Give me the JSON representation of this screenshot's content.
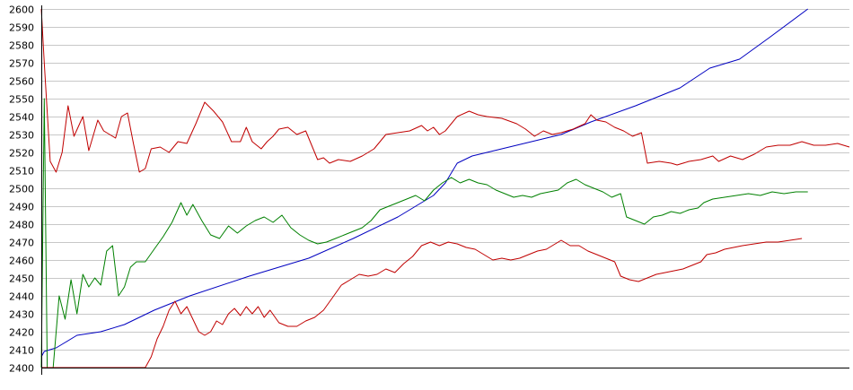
{
  "chart_data": {
    "type": "line",
    "title": "",
    "xlabel": "",
    "ylabel": "",
    "ylim": [
      2400,
      2600
    ],
    "yticks": [
      2400,
      2410,
      2420,
      2430,
      2440,
      2450,
      2460,
      2470,
      2480,
      2490,
      2500,
      2510,
      2520,
      2530,
      2540,
      2550,
      2560,
      2570,
      2580,
      2590,
      2600
    ],
    "grid": "horizontal",
    "legend": "none",
    "n_points": 197,
    "series": [
      {
        "color": "#0000c0",
        "role": "middle",
        "points": [
          [
            0,
            2406
          ],
          [
            1,
            2409
          ],
          [
            5,
            2411
          ],
          [
            8,
            2414
          ],
          [
            12,
            2418
          ],
          [
            20,
            2420
          ],
          [
            28,
            2424
          ],
          [
            38,
            2432
          ],
          [
            50,
            2440
          ],
          [
            70,
            2451
          ],
          [
            90,
            2461
          ],
          [
            105,
            2472
          ],
          [
            120,
            2484
          ],
          [
            132,
            2496
          ],
          [
            136,
            2503
          ],
          [
            140,
            2514
          ],
          [
            145,
            2518
          ],
          [
            160,
            2524
          ],
          [
            175,
            2530
          ],
          [
            185,
            2537
          ],
          [
            200,
            2546
          ],
          [
            215,
            2556
          ],
          [
            225,
            2567
          ],
          [
            235,
            2572
          ],
          [
            245,
            2584
          ],
          [
            258,
            2600
          ]
        ]
      },
      {
        "color": "#c00000",
        "role": "upper",
        "points": [
          [
            0,
            2600
          ],
          [
            1,
            2570
          ],
          [
            3,
            2515
          ],
          [
            5,
            2509
          ],
          [
            7,
            2520
          ],
          [
            9,
            2546
          ],
          [
            11,
            2529
          ],
          [
            14,
            2540
          ],
          [
            16,
            2521
          ],
          [
            19,
            2538
          ],
          [
            21,
            2532
          ],
          [
            23,
            2530
          ],
          [
            25,
            2528
          ],
          [
            27,
            2540
          ],
          [
            29,
            2542
          ],
          [
            31,
            2525
          ],
          [
            33,
            2509
          ],
          [
            35,
            2511
          ],
          [
            37,
            2522
          ],
          [
            40,
            2523
          ],
          [
            43,
            2520
          ],
          [
            46,
            2526
          ],
          [
            49,
            2525
          ],
          [
            52,
            2536
          ],
          [
            55,
            2548
          ],
          [
            58,
            2543
          ],
          [
            61,
            2537
          ],
          [
            64,
            2526
          ],
          [
            67,
            2526
          ],
          [
            69,
            2534
          ],
          [
            71,
            2526
          ],
          [
            74,
            2522
          ],
          [
            76,
            2526
          ],
          [
            78,
            2529
          ],
          [
            80,
            2533
          ],
          [
            83,
            2534
          ],
          [
            86,
            2530
          ],
          [
            89,
            2532
          ],
          [
            91,
            2524
          ],
          [
            93,
            2516
          ],
          [
            95,
            2517
          ],
          [
            97,
            2514
          ],
          [
            100,
            2516
          ],
          [
            104,
            2515
          ],
          [
            108,
            2518
          ],
          [
            112,
            2522
          ],
          [
            116,
            2530
          ],
          [
            120,
            2531
          ],
          [
            124,
            2532
          ],
          [
            128,
            2535
          ],
          [
            130,
            2532
          ],
          [
            132,
            2534
          ],
          [
            134,
            2530
          ],
          [
            136,
            2532
          ],
          [
            140,
            2540
          ],
          [
            144,
            2543
          ],
          [
            147,
            2541
          ],
          [
            150,
            2540
          ],
          [
            155,
            2539
          ],
          [
            160,
            2536
          ],
          [
            163,
            2533
          ],
          [
            166,
            2529
          ],
          [
            169,
            2532
          ],
          [
            172,
            2530
          ],
          [
            175,
            2531
          ],
          [
            179,
            2533
          ],
          [
            183,
            2536
          ],
          [
            185,
            2541
          ],
          [
            187,
            2538
          ],
          [
            190,
            2537
          ],
          [
            193,
            2534
          ],
          [
            196,
            2532
          ],
          [
            199,
            2529
          ],
          [
            202,
            2531
          ],
          [
            204,
            2514
          ],
          [
            208,
            2515
          ],
          [
            212,
            2514
          ],
          [
            214,
            2513
          ],
          [
            218,
            2515
          ],
          [
            222,
            2516
          ],
          [
            226,
            2518
          ],
          [
            228,
            2515
          ],
          [
            232,
            2518
          ],
          [
            236,
            2516
          ],
          [
            240,
            2519
          ],
          [
            244,
            2523
          ],
          [
            248,
            2524
          ],
          [
            252,
            2524
          ],
          [
            256,
            2526
          ],
          [
            260,
            2524
          ],
          [
            264,
            2524
          ],
          [
            268,
            2525
          ],
          [
            272,
            2523
          ]
        ]
      },
      {
        "color": "#008000",
        "role": "mid-upper",
        "points": [
          [
            0,
            2400
          ],
          [
            1,
            2550
          ],
          [
            2,
            2400
          ],
          [
            4,
            2400
          ],
          [
            6,
            2440
          ],
          [
            8,
            2427
          ],
          [
            10,
            2449
          ],
          [
            12,
            2430
          ],
          [
            14,
            2452
          ],
          [
            16,
            2445
          ],
          [
            18,
            2450
          ],
          [
            20,
            2446
          ],
          [
            22,
            2465
          ],
          [
            24,
            2468
          ],
          [
            26,
            2440
          ],
          [
            28,
            2445
          ],
          [
            30,
            2456
          ],
          [
            32,
            2459
          ],
          [
            35,
            2459
          ],
          [
            38,
            2466
          ],
          [
            41,
            2473
          ],
          [
            44,
            2481
          ],
          [
            47,
            2492
          ],
          [
            49,
            2485
          ],
          [
            51,
            2491
          ],
          [
            54,
            2482
          ],
          [
            57,
            2474
          ],
          [
            60,
            2472
          ],
          [
            63,
            2479
          ],
          [
            66,
            2475
          ],
          [
            69,
            2479
          ],
          [
            72,
            2482
          ],
          [
            75,
            2484
          ],
          [
            78,
            2481
          ],
          [
            81,
            2485
          ],
          [
            84,
            2478
          ],
          [
            87,
            2474
          ],
          [
            90,
            2471
          ],
          [
            93,
            2469
          ],
          [
            96,
            2470
          ],
          [
            99,
            2472
          ],
          [
            102,
            2474
          ],
          [
            105,
            2476
          ],
          [
            108,
            2478
          ],
          [
            111,
            2482
          ],
          [
            114,
            2488
          ],
          [
            117,
            2490
          ],
          [
            120,
            2492
          ],
          [
            123,
            2494
          ],
          [
            126,
            2496
          ],
          [
            129,
            2493
          ],
          [
            132,
            2499
          ],
          [
            135,
            2503
          ],
          [
            138,
            2506
          ],
          [
            141,
            2503
          ],
          [
            144,
            2505
          ],
          [
            147,
            2503
          ],
          [
            150,
            2502
          ],
          [
            153,
            2499
          ],
          [
            156,
            2497
          ],
          [
            159,
            2495
          ],
          [
            162,
            2496
          ],
          [
            165,
            2495
          ],
          [
            168,
            2497
          ],
          [
            171,
            2498
          ],
          [
            174,
            2499
          ],
          [
            177,
            2503
          ],
          [
            180,
            2505
          ],
          [
            183,
            2502
          ],
          [
            186,
            2500
          ],
          [
            189,
            2498
          ],
          [
            192,
            2495
          ],
          [
            195,
            2497
          ],
          [
            197,
            2484
          ],
          [
            200,
            2482
          ],
          [
            203,
            2480
          ],
          [
            206,
            2484
          ],
          [
            209,
            2485
          ],
          [
            212,
            2487
          ],
          [
            215,
            2486
          ],
          [
            218,
            2488
          ],
          [
            221,
            2489
          ],
          [
            223,
            2492
          ],
          [
            226,
            2494
          ],
          [
            230,
            2495
          ],
          [
            234,
            2496
          ],
          [
            238,
            2497
          ],
          [
            242,
            2496
          ],
          [
            246,
            2498
          ],
          [
            250,
            2497
          ],
          [
            254,
            2498
          ],
          [
            258,
            2498
          ]
        ]
      },
      {
        "color": "#c00000",
        "role": "lower",
        "points": [
          [
            0,
            2400
          ],
          [
            35,
            2400
          ],
          [
            37,
            2406
          ],
          [
            39,
            2416
          ],
          [
            41,
            2423
          ],
          [
            43,
            2432
          ],
          [
            45,
            2437
          ],
          [
            47,
            2430
          ],
          [
            49,
            2434
          ],
          [
            51,
            2427
          ],
          [
            53,
            2420
          ],
          [
            55,
            2418
          ],
          [
            57,
            2420
          ],
          [
            59,
            2426
          ],
          [
            61,
            2424
          ],
          [
            63,
            2430
          ],
          [
            65,
            2433
          ],
          [
            67,
            2429
          ],
          [
            69,
            2434
          ],
          [
            71,
            2430
          ],
          [
            73,
            2434
          ],
          [
            75,
            2428
          ],
          [
            77,
            2432
          ],
          [
            80,
            2425
          ],
          [
            83,
            2423
          ],
          [
            86,
            2423
          ],
          [
            89,
            2426
          ],
          [
            92,
            2428
          ],
          [
            95,
            2432
          ],
          [
            98,
            2439
          ],
          [
            101,
            2446
          ],
          [
            104,
            2449
          ],
          [
            107,
            2452
          ],
          [
            110,
            2451
          ],
          [
            113,
            2452
          ],
          [
            116,
            2455
          ],
          [
            119,
            2453
          ],
          [
            122,
            2458
          ],
          [
            125,
            2462
          ],
          [
            128,
            2468
          ],
          [
            131,
            2470
          ],
          [
            134,
            2468
          ],
          [
            137,
            2470
          ],
          [
            140,
            2469
          ],
          [
            143,
            2467
          ],
          [
            146,
            2466
          ],
          [
            149,
            2463
          ],
          [
            152,
            2460
          ],
          [
            155,
            2461
          ],
          [
            158,
            2460
          ],
          [
            161,
            2461
          ],
          [
            164,
            2463
          ],
          [
            167,
            2465
          ],
          [
            170,
            2466
          ],
          [
            173,
            2469
          ],
          [
            175,
            2471
          ],
          [
            178,
            2468
          ],
          [
            181,
            2468
          ],
          [
            184,
            2465
          ],
          [
            187,
            2463
          ],
          [
            190,
            2461
          ],
          [
            193,
            2459
          ],
          [
            195,
            2451
          ],
          [
            198,
            2449
          ],
          [
            201,
            2448
          ],
          [
            204,
            2450
          ],
          [
            207,
            2452
          ],
          [
            210,
            2453
          ],
          [
            213,
            2454
          ],
          [
            216,
            2455
          ],
          [
            219,
            2457
          ],
          [
            222,
            2459
          ],
          [
            224,
            2463
          ],
          [
            227,
            2464
          ],
          [
            230,
            2466
          ],
          [
            233,
            2467
          ],
          [
            236,
            2468
          ],
          [
            240,
            2469
          ],
          [
            244,
            2470
          ],
          [
            248,
            2470
          ],
          [
            252,
            2471
          ],
          [
            256,
            2472
          ]
        ]
      }
    ]
  }
}
